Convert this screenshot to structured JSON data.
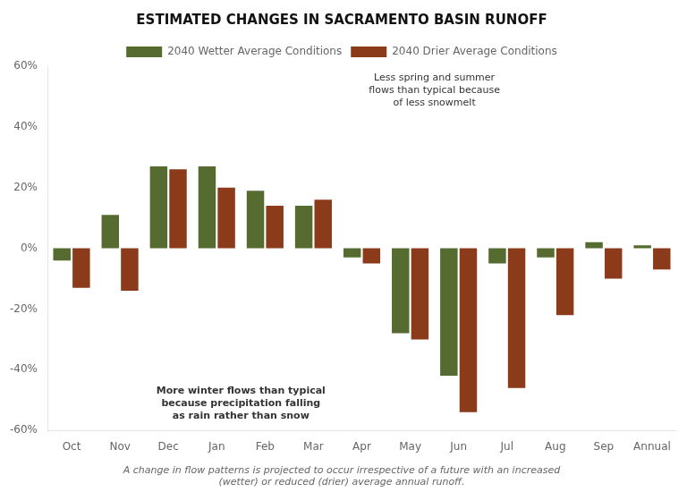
{
  "chart_data": {
    "type": "bar",
    "title": "ESTIMATED CHANGES IN SACRAMENTO BASIN RUNOFF",
    "categories": [
      "Oct",
      "Nov",
      "Dec",
      "Jan",
      "Feb",
      "Mar",
      "Apr",
      "May",
      "Jun",
      "Jul",
      "Aug",
      "Sep",
      "Annual"
    ],
    "series": [
      {
        "name": "2040 Wetter Average Conditions",
        "color": "#556B2F",
        "values": [
          -4,
          11,
          27,
          27,
          19,
          14,
          -3,
          -28,
          -42,
          -5,
          -3,
          2,
          1
        ]
      },
      {
        "name": "2040 Drier Average Conditions",
        "color": "#8B3A1A",
        "values": [
          -13,
          -14,
          26,
          20,
          14,
          16,
          -5,
          -30,
          -54,
          -46,
          -22,
          -10,
          -7
        ]
      }
    ],
    "ylim": [
      -60,
      60
    ],
    "yticks": [
      {
        "value": -60,
        "label": "-60%"
      },
      {
        "value": -40,
        "label": "-40%"
      },
      {
        "value": -20,
        "label": "-20%"
      },
      {
        "value": 0,
        "label": "0%"
      },
      {
        "value": 20,
        "label": "20%"
      },
      {
        "value": 40,
        "label": "40%"
      },
      {
        "value": 60,
        "label": "60%"
      }
    ],
    "grid": false,
    "annotations": [
      "More winter flows than typical\nbecause precipitation falling\nas rain rather than snow",
      "Less spring and summer\nflows than typical because\nof less snowmelt"
    ],
    "caption": "A change in flow patterns is projected to occur irrespective of a future with an increased\n(wetter) or reduced (drier) average annual runoff."
  }
}
